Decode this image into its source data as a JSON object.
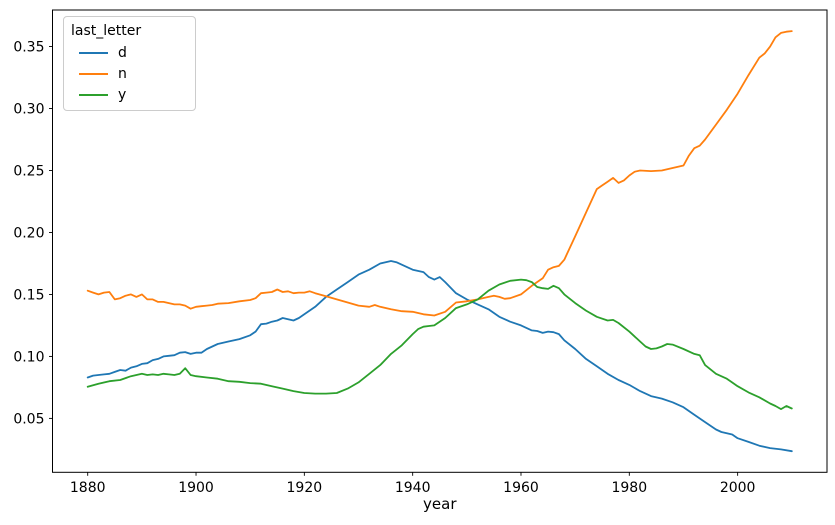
{
  "chart_data": {
    "type": "line",
    "title": "",
    "xlabel": "year",
    "ylabel": "",
    "grid": false,
    "legend": {
      "title": "last_letter",
      "position": "upper left",
      "entries": [
        {
          "label": "d",
          "color": "#1f77b4"
        },
        {
          "label": "n",
          "color": "#ff7f0e"
        },
        {
          "label": "y",
          "color": "#2ca02c"
        }
      ]
    },
    "xlim": [
      1873.5,
      2016.5
    ],
    "ylim": [
      0.0065,
      0.3795
    ],
    "xticks": [
      1880,
      1900,
      1920,
      1940,
      1960,
      1980,
      2000
    ],
    "yticks": [
      0.05,
      0.1,
      0.15,
      0.2,
      0.25,
      0.3,
      0.35
    ],
    "ytick_labels": [
      "0.05",
      "0.10",
      "0.15",
      "0.20",
      "0.25",
      "0.30",
      "0.35"
    ],
    "line_width": 1.8,
    "series": [
      {
        "name": "d",
        "color": "#1f77b4",
        "points": [
          [
            1880,
            0.083
          ],
          [
            1881,
            0.0845
          ],
          [
            1882,
            0.085
          ],
          [
            1883,
            0.0855
          ],
          [
            1884,
            0.086
          ],
          [
            1885,
            0.0875
          ],
          [
            1886,
            0.089
          ],
          [
            1887,
            0.0885
          ],
          [
            1888,
            0.091
          ],
          [
            1889,
            0.092
          ],
          [
            1890,
            0.094
          ],
          [
            1891,
            0.0945
          ],
          [
            1892,
            0.097
          ],
          [
            1893,
            0.098
          ],
          [
            1894,
            0.1
          ],
          [
            1895,
            0.1005
          ],
          [
            1896,
            0.101
          ],
          [
            1897,
            0.103
          ],
          [
            1898,
            0.1035
          ],
          [
            1899,
            0.102
          ],
          [
            1900,
            0.103
          ],
          [
            1901,
            0.103
          ],
          [
            1902,
            0.106
          ],
          [
            1903,
            0.108
          ],
          [
            1904,
            0.11
          ],
          [
            1906,
            0.112
          ],
          [
            1908,
            0.114
          ],
          [
            1910,
            0.117
          ],
          [
            1911,
            0.12
          ],
          [
            1912,
            0.126
          ],
          [
            1913,
            0.1265
          ],
          [
            1914,
            0.128
          ],
          [
            1915,
            0.129
          ],
          [
            1916,
            0.131
          ],
          [
            1917,
            0.13
          ],
          [
            1918,
            0.129
          ],
          [
            1919,
            0.131
          ],
          [
            1920,
            0.134
          ],
          [
            1922,
            0.14
          ],
          [
            1924,
            0.148
          ],
          [
            1926,
            0.154
          ],
          [
            1928,
            0.16
          ],
          [
            1930,
            0.166
          ],
          [
            1932,
            0.17
          ],
          [
            1934,
            0.175
          ],
          [
            1935,
            0.176
          ],
          [
            1936,
            0.177
          ],
          [
            1937,
            0.176
          ],
          [
            1938,
            0.174
          ],
          [
            1940,
            0.17
          ],
          [
            1942,
            0.168
          ],
          [
            1943,
            0.164
          ],
          [
            1944,
            0.162
          ],
          [
            1945,
            0.164
          ],
          [
            1946,
            0.16
          ],
          [
            1948,
            0.151
          ],
          [
            1950,
            0.146
          ],
          [
            1952,
            0.142
          ],
          [
            1954,
            0.138
          ],
          [
            1956,
            0.132
          ],
          [
            1958,
            0.128
          ],
          [
            1960,
            0.125
          ],
          [
            1962,
            0.121
          ],
          [
            1963,
            0.1205
          ],
          [
            1964,
            0.119
          ],
          [
            1965,
            0.12
          ],
          [
            1966,
            0.1195
          ],
          [
            1967,
            0.118
          ],
          [
            1968,
            0.113
          ],
          [
            1970,
            0.106
          ],
          [
            1972,
            0.098
          ],
          [
            1974,
            0.092
          ],
          [
            1976,
            0.086
          ],
          [
            1978,
            0.081
          ],
          [
            1980,
            0.077
          ],
          [
            1982,
            0.072
          ],
          [
            1984,
            0.068
          ],
          [
            1986,
            0.066
          ],
          [
            1988,
            0.063
          ],
          [
            1990,
            0.059
          ],
          [
            1992,
            0.053
          ],
          [
            1994,
            0.047
          ],
          [
            1996,
            0.041
          ],
          [
            1997,
            0.039
          ],
          [
            1998,
            0.038
          ],
          [
            1999,
            0.037
          ],
          [
            2000,
            0.034
          ],
          [
            2002,
            0.031
          ],
          [
            2004,
            0.028
          ],
          [
            2006,
            0.026
          ],
          [
            2008,
            0.025
          ],
          [
            2010,
            0.0235
          ]
        ]
      },
      {
        "name": "n",
        "color": "#ff7f0e",
        "points": [
          [
            1880,
            0.153
          ],
          [
            1881,
            0.1515
          ],
          [
            1882,
            0.15
          ],
          [
            1883,
            0.1515
          ],
          [
            1884,
            0.152
          ],
          [
            1885,
            0.146
          ],
          [
            1886,
            0.147
          ],
          [
            1887,
            0.149
          ],
          [
            1888,
            0.15
          ],
          [
            1889,
            0.148
          ],
          [
            1890,
            0.15
          ],
          [
            1891,
            0.146
          ],
          [
            1892,
            0.146
          ],
          [
            1893,
            0.144
          ],
          [
            1894,
            0.144
          ],
          [
            1895,
            0.143
          ],
          [
            1896,
            0.142
          ],
          [
            1897,
            0.142
          ],
          [
            1898,
            0.141
          ],
          [
            1899,
            0.1385
          ],
          [
            1900,
            0.14
          ],
          [
            1901,
            0.1405
          ],
          [
            1902,
            0.141
          ],
          [
            1903,
            0.1415
          ],
          [
            1904,
            0.1425
          ],
          [
            1906,
            0.143
          ],
          [
            1908,
            0.1445
          ],
          [
            1910,
            0.1455
          ],
          [
            1911,
            0.147
          ],
          [
            1912,
            0.151
          ],
          [
            1913,
            0.1515
          ],
          [
            1914,
            0.152
          ],
          [
            1915,
            0.154
          ],
          [
            1916,
            0.152
          ],
          [
            1917,
            0.1525
          ],
          [
            1918,
            0.151
          ],
          [
            1919,
            0.1515
          ],
          [
            1920,
            0.1515
          ],
          [
            1921,
            0.1525
          ],
          [
            1922,
            0.151
          ],
          [
            1924,
            0.1485
          ],
          [
            1926,
            0.146
          ],
          [
            1928,
            0.1435
          ],
          [
            1930,
            0.141
          ],
          [
            1932,
            0.14
          ],
          [
            1933,
            0.1415
          ],
          [
            1934,
            0.14
          ],
          [
            1936,
            0.138
          ],
          [
            1938,
            0.1365
          ],
          [
            1940,
            0.136
          ],
          [
            1942,
            0.134
          ],
          [
            1944,
            0.133
          ],
          [
            1946,
            0.136
          ],
          [
            1948,
            0.1435
          ],
          [
            1950,
            0.1445
          ],
          [
            1952,
            0.146
          ],
          [
            1954,
            0.148
          ],
          [
            1955,
            0.149
          ],
          [
            1956,
            0.148
          ],
          [
            1957,
            0.1465
          ],
          [
            1958,
            0.147
          ],
          [
            1960,
            0.15
          ],
          [
            1962,
            0.157
          ],
          [
            1964,
            0.163
          ],
          [
            1965,
            0.17
          ],
          [
            1966,
            0.172
          ],
          [
            1967,
            0.173
          ],
          [
            1968,
            0.178
          ],
          [
            1970,
            0.197
          ],
          [
            1972,
            0.216
          ],
          [
            1974,
            0.235
          ],
          [
            1975,
            0.238
          ],
          [
            1976,
            0.241
          ],
          [
            1977,
            0.244
          ],
          [
            1978,
            0.24
          ],
          [
            1979,
            0.242
          ],
          [
            1980,
            0.246
          ],
          [
            1981,
            0.249
          ],
          [
            1982,
            0.25
          ],
          [
            1984,
            0.2495
          ],
          [
            1986,
            0.25
          ],
          [
            1988,
            0.252
          ],
          [
            1990,
            0.254
          ],
          [
            1991,
            0.262
          ],
          [
            1992,
            0.268
          ],
          [
            1993,
            0.27
          ],
          [
            1994,
            0.275
          ],
          [
            1996,
            0.287
          ],
          [
            1998,
            0.299
          ],
          [
            2000,
            0.312
          ],
          [
            2002,
            0.327
          ],
          [
            2004,
            0.341
          ],
          [
            2005,
            0.3445
          ],
          [
            2006,
            0.35
          ],
          [
            2007,
            0.3575
          ],
          [
            2008,
            0.361
          ],
          [
            2009,
            0.362
          ],
          [
            2010,
            0.3625
          ]
        ]
      },
      {
        "name": "y",
        "color": "#2ca02c",
        "points": [
          [
            1880,
            0.0755
          ],
          [
            1882,
            0.078
          ],
          [
            1884,
            0.08
          ],
          [
            1886,
            0.081
          ],
          [
            1888,
            0.084
          ],
          [
            1890,
            0.086
          ],
          [
            1891,
            0.085
          ],
          [
            1892,
            0.0855
          ],
          [
            1893,
            0.085
          ],
          [
            1894,
            0.086
          ],
          [
            1895,
            0.0855
          ],
          [
            1896,
            0.085
          ],
          [
            1897,
            0.086
          ],
          [
            1898,
            0.0905
          ],
          [
            1899,
            0.085
          ],
          [
            1900,
            0.084
          ],
          [
            1902,
            0.083
          ],
          [
            1904,
            0.082
          ],
          [
            1906,
            0.08
          ],
          [
            1908,
            0.0795
          ],
          [
            1910,
            0.0785
          ],
          [
            1912,
            0.078
          ],
          [
            1914,
            0.076
          ],
          [
            1916,
            0.074
          ],
          [
            1918,
            0.072
          ],
          [
            1920,
            0.0705
          ],
          [
            1922,
            0.07
          ],
          [
            1924,
            0.07
          ],
          [
            1926,
            0.0705
          ],
          [
            1928,
            0.074
          ],
          [
            1930,
            0.079
          ],
          [
            1932,
            0.086
          ],
          [
            1934,
            0.093
          ],
          [
            1936,
            0.102
          ],
          [
            1938,
            0.109
          ],
          [
            1940,
            0.118
          ],
          [
            1941,
            0.122
          ],
          [
            1942,
            0.124
          ],
          [
            1943,
            0.1245
          ],
          [
            1944,
            0.125
          ],
          [
            1946,
            0.131
          ],
          [
            1948,
            0.139
          ],
          [
            1950,
            0.142
          ],
          [
            1952,
            0.146
          ],
          [
            1954,
            0.153
          ],
          [
            1956,
            0.158
          ],
          [
            1958,
            0.161
          ],
          [
            1960,
            0.162
          ],
          [
            1961,
            0.1615
          ],
          [
            1962,
            0.16
          ],
          [
            1963,
            0.156
          ],
          [
            1964,
            0.155
          ],
          [
            1965,
            0.1545
          ],
          [
            1966,
            0.157
          ],
          [
            1967,
            0.155
          ],
          [
            1968,
            0.15
          ],
          [
            1970,
            0.143
          ],
          [
            1972,
            0.137
          ],
          [
            1974,
            0.132
          ],
          [
            1976,
            0.129
          ],
          [
            1977,
            0.1295
          ],
          [
            1978,
            0.127
          ],
          [
            1980,
            0.12
          ],
          [
            1982,
            0.112
          ],
          [
            1983,
            0.108
          ],
          [
            1984,
            0.106
          ],
          [
            1985,
            0.1065
          ],
          [
            1986,
            0.108
          ],
          [
            1987,
            0.11
          ],
          [
            1988,
            0.1095
          ],
          [
            1990,
            0.106
          ],
          [
            1992,
            0.102
          ],
          [
            1993,
            0.101
          ],
          [
            1994,
            0.093
          ],
          [
            1996,
            0.086
          ],
          [
            1998,
            0.082
          ],
          [
            2000,
            0.076
          ],
          [
            2002,
            0.071
          ],
          [
            2004,
            0.067
          ],
          [
            2006,
            0.062
          ],
          [
            2007,
            0.06
          ],
          [
            2008,
            0.0575
          ],
          [
            2009,
            0.06
          ],
          [
            2010,
            0.058
          ]
        ]
      }
    ]
  }
}
